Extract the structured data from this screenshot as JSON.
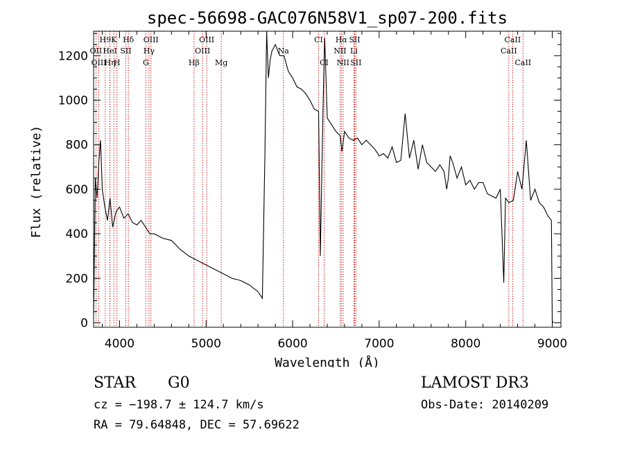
{
  "chart_data": {
    "type": "line",
    "title": "spec-56698-GAC076N58V1_sp07-200.fits",
    "xlabel": "Wavelength (Å)",
    "ylabel": "Flux (relative)",
    "xlim": [
      3700,
      9100
    ],
    "ylim": [
      -20,
      1310
    ],
    "x_ticks": [
      4000,
      5000,
      6000,
      7000,
      8000,
      9000
    ],
    "x_tick_labels": [
      "4000",
      "5000",
      "6000",
      "7000",
      "8000",
      "9000"
    ],
    "y_ticks": [
      0,
      200,
      400,
      600,
      800,
      1000,
      1200
    ],
    "y_tick_labels": [
      "0",
      "200",
      "400",
      "600",
      "800",
      "1000",
      "1200"
    ],
    "series": [
      {
        "name": "flux",
        "x": [
          3700,
          3720,
          3740,
          3760,
          3780,
          3800,
          3830,
          3860,
          3890,
          3920,
          3960,
          4000,
          4050,
          4100,
          4150,
          4200,
          4250,
          4300,
          4350,
          4400,
          4450,
          4500,
          4600,
          4700,
          4800,
          4900,
          5000,
          5100,
          5200,
          5300,
          5400,
          5500,
          5600,
          5650,
          5680,
          5700,
          5720,
          5740,
          5760,
          5800,
          5850,
          5900,
          5950,
          6000,
          6050,
          6100,
          6150,
          6200,
          6250,
          6300,
          6320,
          6350,
          6370,
          6400,
          6450,
          6500,
          6550,
          6570,
          6600,
          6650,
          6700,
          6750,
          6800,
          6850,
          6900,
          6950,
          7000,
          7050,
          7100,
          7150,
          7200,
          7250,
          7300,
          7350,
          7400,
          7450,
          7500,
          7550,
          7600,
          7650,
          7700,
          7750,
          7780,
          7800,
          7820,
          7850,
          7900,
          7950,
          8000,
          8050,
          8100,
          8150,
          8200,
          8250,
          8300,
          8350,
          8400,
          8440,
          8460,
          8500,
          8550,
          8600,
          8650,
          8700,
          8750,
          8800,
          8850,
          8900,
          8950,
          8990,
          9000,
          9010
        ],
        "y": [
          30,
          650,
          560,
          720,
          820,
          600,
          520,
          460,
          560,
          430,
          500,
          520,
          470,
          490,
          450,
          440,
          460,
          430,
          400,
          400,
          390,
          380,
          370,
          330,
          300,
          280,
          260,
          240,
          220,
          200,
          190,
          170,
          140,
          110,
          760,
          1310,
          1100,
          1180,
          1220,
          1250,
          1200,
          1200,
          1130,
          1100,
          1060,
          1050,
          1030,
          1000,
          960,
          950,
          300,
          950,
          1280,
          920,
          890,
          860,
          840,
          770,
          860,
          830,
          820,
          830,
          800,
          820,
          800,
          780,
          750,
          760,
          740,
          790,
          720,
          730,
          940,
          740,
          820,
          690,
          800,
          720,
          700,
          680,
          710,
          680,
          600,
          650,
          750,
          720,
          650,
          700,
          620,
          640,
          600,
          630,
          630,
          580,
          570,
          560,
          600,
          180,
          560,
          540,
          550,
          680,
          600,
          820,
          550,
          600,
          540,
          520,
          480,
          460,
          10,
          0
        ]
      }
    ],
    "line_groups": [
      {
        "name": "hydrogen-balmer",
        "color": "#cc0000",
        "lines": [
          {
            "label": "H9",
            "wavelength": 3835,
            "row": 1
          },
          {
            "label": "Hη",
            "wavelength": 3889,
            "row": 3
          },
          {
            "label": "H",
            "wavelength": 3970,
            "row": 3
          },
          {
            "label": "Hδ",
            "wavelength": 4102,
            "row": 1
          },
          {
            "label": "Hγ",
            "wavelength": 4340,
            "row": 2
          },
          {
            "label": "Hβ",
            "wavelength": 4861,
            "row": 3
          },
          {
            "label": "Hα",
            "wavelength": 6563,
            "row": 1
          }
        ]
      },
      {
        "name": "metals-and-other",
        "color": "#cc0000",
        "lines": [
          {
            "label": "OII",
            "wavelength": 3727,
            "row": 2
          },
          {
            "label": "OIII",
            "wavelength": 3760,
            "row": 3
          },
          {
            "label": "K",
            "wavelength": 3934,
            "row": 1
          },
          {
            "label": "HeI",
            "wavelength": 3889,
            "row": 2
          },
          {
            "label": "SII",
            "wavelength": 4072,
            "row": 2
          },
          {
            "label": "OIII",
            "wavelength": 4363,
            "row": 1
          },
          {
            "label": "G",
            "wavelength": 4304,
            "row": 3
          },
          {
            "label": "OIII",
            "wavelength": 4959,
            "row": 2
          },
          {
            "label": "OIII",
            "wavelength": 5007,
            "row": 1
          },
          {
            "label": "Mg",
            "wavelength": 5175,
            "row": 3
          },
          {
            "label": "Na",
            "wavelength": 5893,
            "row": 2
          },
          {
            "label": "CI",
            "wavelength": 6300,
            "row": 1
          },
          {
            "label": "CI",
            "wavelength": 6364,
            "row": 3
          },
          {
            "label": "NII",
            "wavelength": 6548,
            "row": 2
          },
          {
            "label": "NII",
            "wavelength": 6583,
            "row": 3
          },
          {
            "label": "SII",
            "wavelength": 6716,
            "row": 1
          },
          {
            "label": "Li",
            "wavelength": 6708,
            "row": 2
          },
          {
            "label": "SII",
            "wavelength": 6731,
            "row": 3
          },
          {
            "label": "CaII",
            "wavelength": 8498,
            "row": 2
          },
          {
            "label": "CaII",
            "wavelength": 8542,
            "row": 1
          },
          {
            "label": "CaII",
            "wavelength": 8662,
            "row": 3
          }
        ]
      }
    ]
  },
  "info": {
    "object_class": "STAR",
    "subclass": "G0",
    "survey": "LAMOST DR3",
    "redshift": "cz = −198.7 ± 124.7 km/s",
    "obs_date": "Obs-Date: 20140209",
    "coords": "RA =  79.64848, DEC =  57.69622"
  },
  "colors": {
    "line_marker": "#cc0000",
    "axes": "#000000",
    "spectrum": "#000000"
  }
}
